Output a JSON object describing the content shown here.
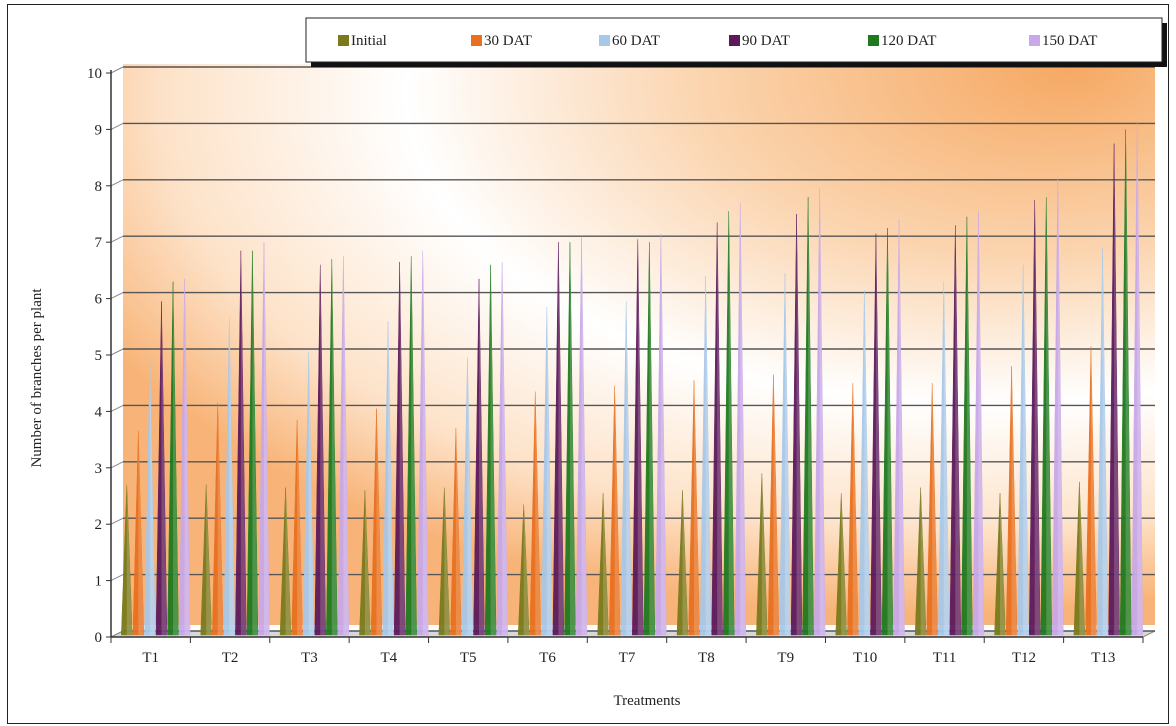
{
  "chart_data": {
    "type": "bar",
    "title": "",
    "xlabel": "Treatments",
    "ylabel": "Number of branches per plant",
    "ylim": [
      0,
      10
    ],
    "yticks": [
      0,
      1,
      2,
      3,
      4,
      5,
      6,
      7,
      8,
      9,
      10
    ],
    "grid": true,
    "legend_position": "top",
    "categories": [
      "T1",
      "T2",
      "T3",
      "T4",
      "T5",
      "T6",
      "T7",
      "T8",
      "T9",
      "T10",
      "T11",
      "T12",
      "T13"
    ],
    "series": [
      {
        "name": "Initial",
        "color": "#7a7a1c",
        "values": [
          2.7,
          2.7,
          2.65,
          2.6,
          2.65,
          2.35,
          2.55,
          2.6,
          2.9,
          2.55,
          2.65,
          2.55,
          2.75
        ]
      },
      {
        "name": "30 DAT",
        "color": "#e8701f",
        "values": [
          3.65,
          4.15,
          3.85,
          4.05,
          3.7,
          4.35,
          4.45,
          4.55,
          4.65,
          4.5,
          4.5,
          4.8,
          5.15
        ]
      },
      {
        "name": "60 DAT",
        "color": "#a8c8e8",
        "values": [
          4.9,
          5.65,
          5.05,
          5.6,
          4.95,
          5.85,
          5.95,
          6.4,
          6.45,
          6.15,
          6.3,
          6.6,
          6.9
        ]
      },
      {
        "name": "90 DAT",
        "color": "#5c1a5c",
        "values": [
          5.95,
          6.85,
          6.6,
          6.65,
          6.35,
          7.0,
          7.05,
          7.35,
          7.5,
          7.15,
          7.3,
          7.75,
          8.75
        ]
      },
      {
        "name": "120 DAT",
        "color": "#1f7a1f",
        "values": [
          6.3,
          6.85,
          6.7,
          6.75,
          6.6,
          7.0,
          7.0,
          7.55,
          7.8,
          7.25,
          7.45,
          7.8,
          9.0
        ]
      },
      {
        "name": "150 DAT",
        "color": "#c8a8e8",
        "values": [
          6.35,
          7.0,
          6.75,
          6.85,
          6.65,
          7.1,
          7.15,
          7.7,
          7.95,
          7.4,
          7.55,
          8.15,
          9.15
        ]
      }
    ]
  }
}
